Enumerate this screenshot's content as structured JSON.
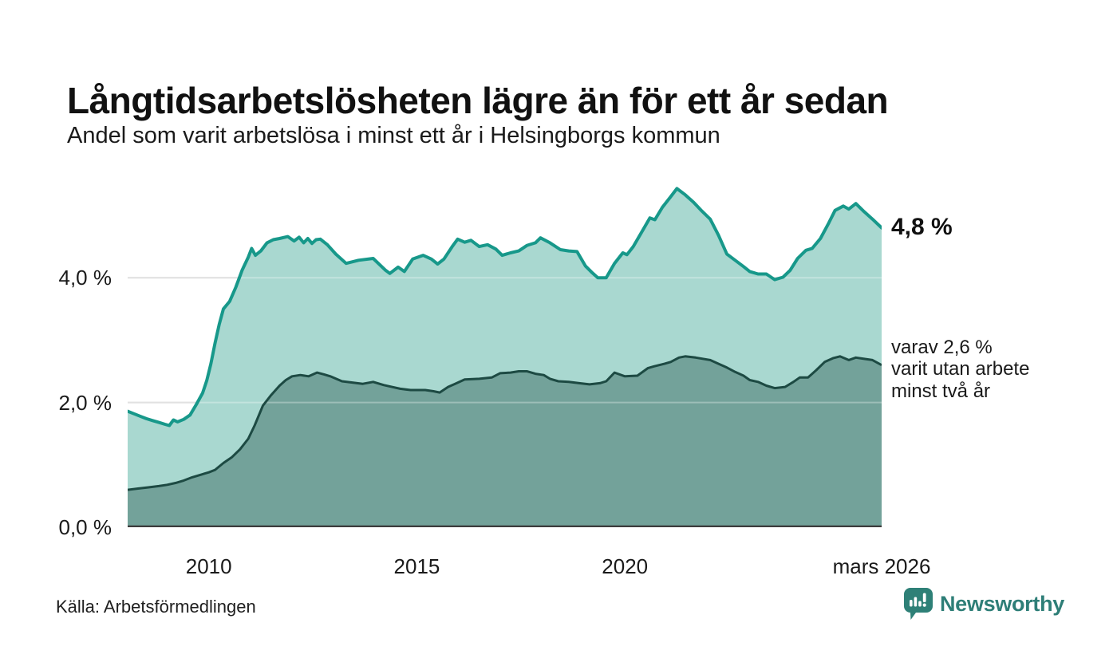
{
  "header": {
    "title": "Långtidsarbetslösheten lägre än för ett år sedan",
    "subtitle": "Andel som varit arbetslösa i minst ett år i Helsingborgs kommun"
  },
  "annotations": {
    "latest_total_label": "4,8 %",
    "latest_detail_lines": [
      "varav 2,6 %",
      "varit utan arbete",
      "minst två år"
    ]
  },
  "footer": {
    "source": "Källa: Arbetsförmedlingen",
    "brand_name": "Newsworthy"
  },
  "colors": {
    "line_total": "#17988a",
    "fill_total": "#a9d8d0",
    "line_two_years": "#1d4a43",
    "fill_two_years": "#73a29a",
    "gridline": "#d4d4d4",
    "baseline": "#3c3c3c",
    "brand_teal": "#2e7e77"
  },
  "chart_data": {
    "type": "area",
    "title": "Långtidsarbetslösheten lägre än för ett år sedan",
    "subtitle": "Andel som varit arbetslösa i minst ett år i Helsingborgs kommun",
    "unit": "%",
    "x_range": [
      2008.05,
      2026.17
    ],
    "y_range": [
      0,
      5.64
    ],
    "grid_values": [
      2,
      4
    ],
    "y_ticks": [
      {
        "value": 0,
        "label": "0,0 %"
      },
      {
        "value": 2,
        "label": "2,0 %"
      },
      {
        "value": 4,
        "label": "4,0 %"
      }
    ],
    "x_ticks": [
      {
        "year": 2010,
        "label": "2010"
      },
      {
        "year": 2015,
        "label": "2015"
      },
      {
        "year": 2020,
        "label": "2020"
      },
      {
        "year": 2026.17,
        "label": "mars 2026"
      }
    ],
    "latest": {
      "total": 4.8,
      "two_years": 2.6,
      "period": "mars 2026"
    },
    "series": [
      {
        "name": "Andel arbetslösa minst ett år",
        "points": [
          [
            2008.05,
            1.86
          ],
          [
            2008.2,
            1.82
          ],
          [
            2008.35,
            1.78
          ],
          [
            2008.5,
            1.74
          ],
          [
            2008.65,
            1.71
          ],
          [
            2008.8,
            1.68
          ],
          [
            2008.95,
            1.65
          ],
          [
            2009.05,
            1.63
          ],
          [
            2009.15,
            1.72
          ],
          [
            2009.25,
            1.69
          ],
          [
            2009.4,
            1.73
          ],
          [
            2009.55,
            1.8
          ],
          [
            2009.7,
            1.97
          ],
          [
            2009.85,
            2.15
          ],
          [
            2009.95,
            2.35
          ],
          [
            2010.05,
            2.62
          ],
          [
            2010.15,
            2.95
          ],
          [
            2010.25,
            3.25
          ],
          [
            2010.35,
            3.5
          ],
          [
            2010.5,
            3.62
          ],
          [
            2010.65,
            3.85
          ],
          [
            2010.8,
            4.12
          ],
          [
            2010.95,
            4.33
          ],
          [
            2011.03,
            4.47
          ],
          [
            2011.12,
            4.36
          ],
          [
            2011.25,
            4.43
          ],
          [
            2011.4,
            4.56
          ],
          [
            2011.55,
            4.61
          ],
          [
            2011.7,
            4.63
          ],
          [
            2011.9,
            4.66
          ],
          [
            2012.05,
            4.59
          ],
          [
            2012.17,
            4.65
          ],
          [
            2012.28,
            4.56
          ],
          [
            2012.38,
            4.63
          ],
          [
            2012.48,
            4.55
          ],
          [
            2012.58,
            4.61
          ],
          [
            2012.68,
            4.62
          ],
          [
            2012.85,
            4.53
          ],
          [
            2013.05,
            4.38
          ],
          [
            2013.3,
            4.23
          ],
          [
            2013.6,
            4.28
          ],
          [
            2013.95,
            4.31
          ],
          [
            2014.25,
            4.12
          ],
          [
            2014.35,
            4.07
          ],
          [
            2014.55,
            4.17
          ],
          [
            2014.7,
            4.1
          ],
          [
            2014.9,
            4.3
          ],
          [
            2015.15,
            4.36
          ],
          [
            2015.35,
            4.3
          ],
          [
            2015.5,
            4.22
          ],
          [
            2015.65,
            4.3
          ],
          [
            2015.85,
            4.5
          ],
          [
            2015.98,
            4.62
          ],
          [
            2016.15,
            4.57
          ],
          [
            2016.3,
            4.6
          ],
          [
            2016.5,
            4.5
          ],
          [
            2016.7,
            4.53
          ],
          [
            2016.9,
            4.46
          ],
          [
            2017.05,
            4.36
          ],
          [
            2017.25,
            4.4
          ],
          [
            2017.45,
            4.43
          ],
          [
            2017.65,
            4.52
          ],
          [
            2017.85,
            4.56
          ],
          [
            2017.97,
            4.64
          ],
          [
            2018.2,
            4.56
          ],
          [
            2018.45,
            4.45
          ],
          [
            2018.65,
            4.43
          ],
          [
            2018.85,
            4.42
          ],
          [
            2019.05,
            4.19
          ],
          [
            2019.2,
            4.09
          ],
          [
            2019.35,
            4.0
          ],
          [
            2019.55,
            4.0
          ],
          [
            2019.75,
            4.23
          ],
          [
            2019.95,
            4.4
          ],
          [
            2020.05,
            4.37
          ],
          [
            2020.2,
            4.5
          ],
          [
            2020.4,
            4.73
          ],
          [
            2020.6,
            4.96
          ],
          [
            2020.72,
            4.93
          ],
          [
            2020.9,
            5.13
          ],
          [
            2021.1,
            5.3
          ],
          [
            2021.25,
            5.43
          ],
          [
            2021.45,
            5.33
          ],
          [
            2021.65,
            5.21
          ],
          [
            2021.85,
            5.07
          ],
          [
            2022.05,
            4.94
          ],
          [
            2022.25,
            4.68
          ],
          [
            2022.45,
            4.38
          ],
          [
            2022.65,
            4.28
          ],
          [
            2022.85,
            4.18
          ],
          [
            2023.0,
            4.1
          ],
          [
            2023.2,
            4.06
          ],
          [
            2023.4,
            4.06
          ],
          [
            2023.6,
            3.97
          ],
          [
            2023.8,
            4.01
          ],
          [
            2023.97,
            4.12
          ],
          [
            2024.15,
            4.31
          ],
          [
            2024.35,
            4.44
          ],
          [
            2024.5,
            4.47
          ],
          [
            2024.7,
            4.63
          ],
          [
            2024.9,
            4.88
          ],
          [
            2025.05,
            5.08
          ],
          [
            2025.25,
            5.15
          ],
          [
            2025.38,
            5.1
          ],
          [
            2025.55,
            5.19
          ],
          [
            2025.75,
            5.06
          ],
          [
            2025.95,
            4.94
          ],
          [
            2026.17,
            4.8
          ]
        ]
      },
      {
        "name": "varav utan arbete minst två år",
        "points": [
          [
            2008.05,
            0.6
          ],
          [
            2008.3,
            0.62
          ],
          [
            2008.55,
            0.64
          ],
          [
            2008.8,
            0.66
          ],
          [
            2009.0,
            0.68
          ],
          [
            2009.2,
            0.71
          ],
          [
            2009.4,
            0.75
          ],
          [
            2009.6,
            0.8
          ],
          [
            2009.8,
            0.84
          ],
          [
            2010.0,
            0.88
          ],
          [
            2010.15,
            0.92
          ],
          [
            2010.35,
            1.03
          ],
          [
            2010.55,
            1.12
          ],
          [
            2010.75,
            1.25
          ],
          [
            2010.95,
            1.42
          ],
          [
            2011.1,
            1.63
          ],
          [
            2011.3,
            1.95
          ],
          [
            2011.5,
            2.12
          ],
          [
            2011.7,
            2.27
          ],
          [
            2011.85,
            2.36
          ],
          [
            2012.0,
            2.42
          ],
          [
            2012.2,
            2.44
          ],
          [
            2012.4,
            2.42
          ],
          [
            2012.6,
            2.48
          ],
          [
            2012.77,
            2.45
          ],
          [
            2012.92,
            2.42
          ],
          [
            2013.2,
            2.34
          ],
          [
            2013.45,
            2.32
          ],
          [
            2013.7,
            2.3
          ],
          [
            2013.95,
            2.33
          ],
          [
            2014.2,
            2.28
          ],
          [
            2014.4,
            2.25
          ],
          [
            2014.6,
            2.22
          ],
          [
            2014.85,
            2.2
          ],
          [
            2015.2,
            2.2
          ],
          [
            2015.4,
            2.18
          ],
          [
            2015.55,
            2.16
          ],
          [
            2015.75,
            2.25
          ],
          [
            2015.92,
            2.3
          ],
          [
            2016.15,
            2.37
          ],
          [
            2016.5,
            2.38
          ],
          [
            2016.8,
            2.4
          ],
          [
            2017.0,
            2.47
          ],
          [
            2017.25,
            2.48
          ],
          [
            2017.45,
            2.5
          ],
          [
            2017.65,
            2.5
          ],
          [
            2017.85,
            2.46
          ],
          [
            2018.05,
            2.44
          ],
          [
            2018.2,
            2.38
          ],
          [
            2018.4,
            2.34
          ],
          [
            2018.65,
            2.33
          ],
          [
            2018.9,
            2.31
          ],
          [
            2019.15,
            2.29
          ],
          [
            2019.4,
            2.31
          ],
          [
            2019.55,
            2.34
          ],
          [
            2019.75,
            2.48
          ],
          [
            2020.0,
            2.42
          ],
          [
            2020.3,
            2.43
          ],
          [
            2020.55,
            2.55
          ],
          [
            2020.7,
            2.58
          ],
          [
            2020.95,
            2.62
          ],
          [
            2021.1,
            2.65
          ],
          [
            2021.3,
            2.72
          ],
          [
            2021.45,
            2.74
          ],
          [
            2021.7,
            2.72
          ],
          [
            2022.05,
            2.68
          ],
          [
            2022.25,
            2.62
          ],
          [
            2022.45,
            2.56
          ],
          [
            2022.65,
            2.49
          ],
          [
            2022.85,
            2.43
          ],
          [
            2023.0,
            2.36
          ],
          [
            2023.2,
            2.33
          ],
          [
            2023.4,
            2.27
          ],
          [
            2023.6,
            2.23
          ],
          [
            2023.85,
            2.25
          ],
          [
            2024.05,
            2.33
          ],
          [
            2024.2,
            2.4
          ],
          [
            2024.4,
            2.4
          ],
          [
            2024.6,
            2.52
          ],
          [
            2024.8,
            2.65
          ],
          [
            2025.0,
            2.71
          ],
          [
            2025.17,
            2.74
          ],
          [
            2025.38,
            2.68
          ],
          [
            2025.55,
            2.72
          ],
          [
            2025.75,
            2.7
          ],
          [
            2025.95,
            2.68
          ],
          [
            2026.17,
            2.6
          ]
        ]
      }
    ]
  }
}
